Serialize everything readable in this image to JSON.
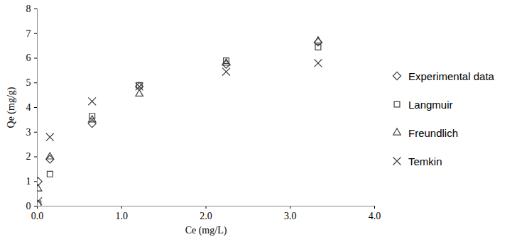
{
  "chart_data": {
    "type": "scatter",
    "x_label": "Ce (mg/L)",
    "y_label": "Qe (mg/g)",
    "x": [
      0.01,
      0.15,
      0.65,
      1.21,
      2.24,
      3.33
    ],
    "series": [
      {
        "name": "Experimental data",
        "color": "#404040",
        "marker": "diamond",
        "values": [
          1.0,
          1.9,
          3.35,
          4.85,
          5.75,
          6.65
        ]
      },
      {
        "name": "Langmuir",
        "color": "#404040",
        "marker": "square",
        "values": [
          0.1,
          1.3,
          3.65,
          4.9,
          5.9,
          6.45
        ]
      },
      {
        "name": "Freundlich",
        "color": "#404040",
        "marker": "triangle",
        "values": [
          0.7,
          2.0,
          3.5,
          4.55,
          5.8,
          6.7
        ]
      },
      {
        "name": "Temkin",
        "color": "#404040",
        "marker": "x",
        "values": [
          0.2,
          2.8,
          4.25,
          4.85,
          5.45,
          5.8
        ]
      }
    ],
    "xlim": [
      0,
      4
    ],
    "xticks": [
      {
        "value": 0,
        "label": "0.0"
      },
      {
        "value": 1,
        "label": "1.0"
      },
      {
        "value": 2,
        "label": "2.0"
      },
      {
        "value": 3,
        "label": "3.0"
      },
      {
        "value": 4,
        "label": "4.0"
      }
    ],
    "ylim": [
      0,
      8
    ],
    "yticks": [
      0,
      1,
      2,
      3,
      4,
      5,
      6,
      7,
      8
    ],
    "grid": false,
    "legend": "right"
  }
}
